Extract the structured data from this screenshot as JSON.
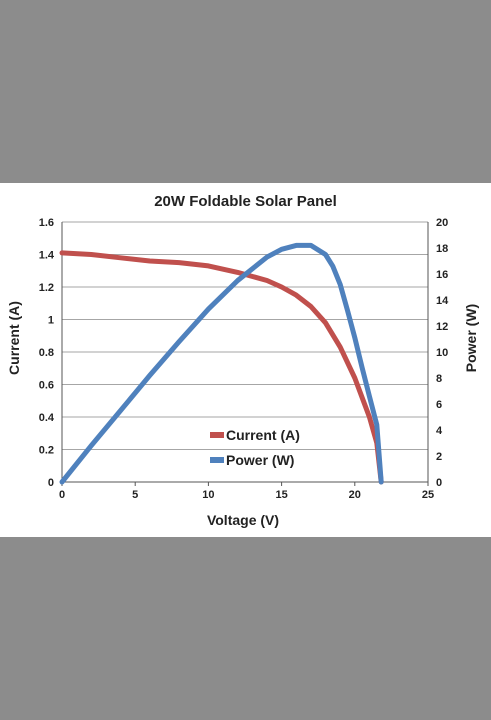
{
  "chart_data": {
    "type": "line",
    "title": "20W Foldable Solar Panel",
    "xlabel": "Voltage (V)",
    "ylabel_left": "Current (A)",
    "ylabel_right": "Power (W)",
    "xlim": [
      0,
      25
    ],
    "ylim_left": [
      0,
      1.6
    ],
    "ylim_right": [
      0,
      20
    ],
    "x_ticks": [
      "0",
      "5",
      "10",
      "15",
      "20",
      "25"
    ],
    "y_left_ticks": [
      "0",
      "0.2",
      "0.4",
      "0.6",
      "0.8",
      "1",
      "1.2",
      "1.4",
      "1.6"
    ],
    "y_right_ticks": [
      "0",
      "2",
      "4",
      "6",
      "8",
      "10",
      "12",
      "14",
      "16",
      "18",
      "20"
    ],
    "grid": true,
    "legend_position": "center-bottom",
    "series": [
      {
        "name": "Current (A)",
        "axis": "left",
        "color": "#c0504d",
        "x": [
          0,
          2,
          4,
          6,
          8,
          10,
          12,
          14,
          15,
          16,
          17,
          18,
          19,
          20,
          21,
          21.5,
          21.8
        ],
        "y": [
          1.41,
          1.4,
          1.38,
          1.36,
          1.35,
          1.33,
          1.29,
          1.24,
          1.2,
          1.15,
          1.08,
          0.98,
          0.83,
          0.64,
          0.4,
          0.24,
          0
        ]
      },
      {
        "name": "Power (W)",
        "axis": "right",
        "color": "#4f81bd",
        "x": [
          0,
          2,
          4,
          6,
          8,
          10,
          12,
          14,
          15,
          16,
          17,
          18,
          18.5,
          19,
          19.5,
          20,
          20.5,
          21,
          21.5,
          21.8
        ],
        "y": [
          0,
          2.8,
          5.5,
          8.2,
          10.8,
          13.3,
          15.5,
          17.3,
          17.9,
          18.2,
          18.2,
          17.5,
          16.6,
          15.2,
          13.2,
          11.1,
          8.8,
          6.6,
          4.4,
          0
        ]
      }
    ]
  }
}
